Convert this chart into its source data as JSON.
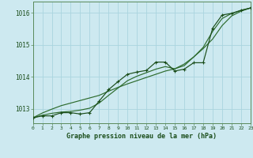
{
  "title": "Graphe pression niveau de la mer (hPa)",
  "background_color": "#cde9f0",
  "grid_color": "#b8dde8",
  "line_color_dark": "#1a4d1a",
  "line_color_mid": "#2d6b2d",
  "xlim": [
    0,
    23
  ],
  "ylim": [
    1012.55,
    1016.35
  ],
  "yticks": [
    1013,
    1014,
    1015,
    1016
  ],
  "xtick_labels": [
    "0",
    "1",
    "2",
    "3",
    "4",
    "5",
    "6",
    "7",
    "8",
    "9",
    "10",
    "11",
    "12",
    "13",
    "14",
    "15",
    "16",
    "17",
    "18",
    "19",
    "20",
    "21",
    "22",
    "23"
  ],
  "x": [
    0,
    1,
    2,
    3,
    4,
    5,
    6,
    7,
    8,
    9,
    10,
    11,
    12,
    13,
    14,
    15,
    16,
    17,
    18,
    19,
    20,
    21,
    22,
    23
  ],
  "y_jagged": [
    1012.72,
    1012.78,
    1012.78,
    1012.88,
    1012.88,
    1012.84,
    1012.88,
    1013.24,
    1013.6,
    1013.85,
    1014.08,
    1014.15,
    1014.2,
    1014.46,
    1014.46,
    1014.18,
    1014.24,
    1014.44,
    1014.44,
    1015.52,
    1015.93,
    1015.98,
    1016.08,
    1016.15
  ],
  "y_smooth1": [
    1012.72,
    1012.8,
    1012.86,
    1012.9,
    1012.92,
    1012.96,
    1013.02,
    1013.18,
    1013.42,
    1013.65,
    1013.88,
    1014.02,
    1014.13,
    1014.24,
    1014.32,
    1014.25,
    1014.35,
    1014.62,
    1014.92,
    1015.42,
    1015.82,
    1015.98,
    1016.07,
    1016.15
  ],
  "y_linear": [
    1012.72,
    1012.87,
    1012.99,
    1013.1,
    1013.18,
    1013.26,
    1013.34,
    1013.42,
    1013.55,
    1013.67,
    1013.78,
    1013.88,
    1013.98,
    1014.08,
    1014.18,
    1014.25,
    1014.4,
    1014.62,
    1014.88,
    1015.18,
    1015.6,
    1015.9,
    1016.05,
    1016.15
  ]
}
